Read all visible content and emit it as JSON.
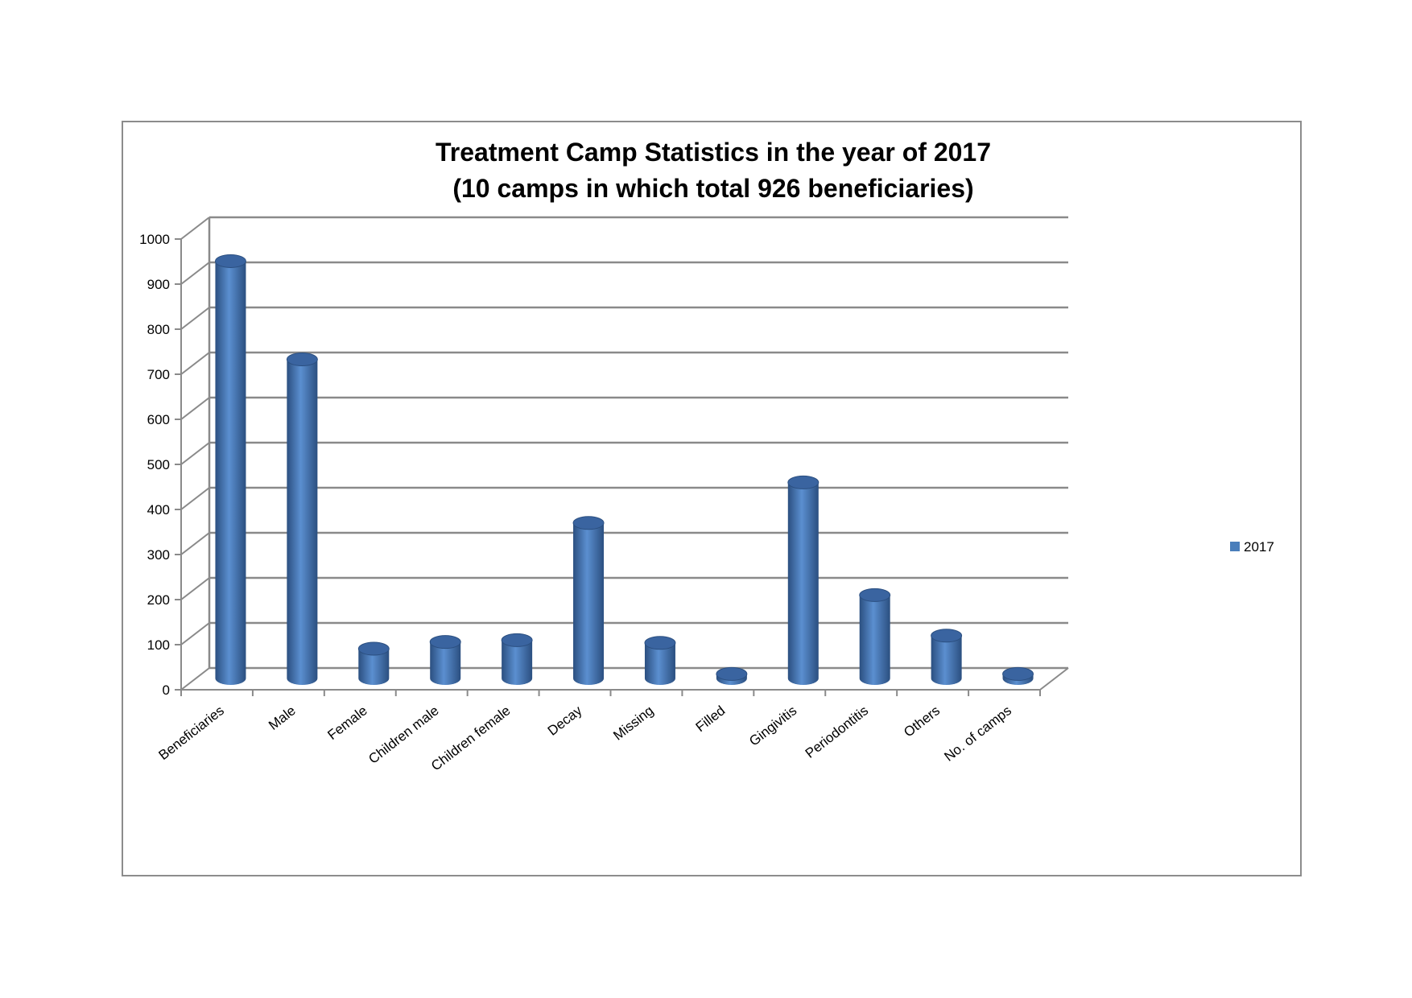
{
  "chart_data": {
    "type": "bar",
    "title": "Treatment Camp Statistics in the year of 2017",
    "subtitle": "(10 camps in which total 926 beneficiaries)",
    "categories": [
      "Beneficiaries",
      "Male",
      "Female",
      "Children male",
      "Children female",
      "Decay",
      "Missing",
      "Filled",
      "Gingivitis",
      "Periodontitis",
      "Others",
      "No. of camps"
    ],
    "series": [
      {
        "name": "2017",
        "values": [
          926,
          708,
          66,
          81,
          85,
          345,
          79,
          10,
          435,
          185,
          95,
          10
        ]
      }
    ],
    "y_ticks": [
      "0",
      "100",
      "200",
      "300",
      "400",
      "500",
      "600",
      "700",
      "800",
      "900",
      "1000"
    ],
    "ylim": [
      0,
      1000
    ],
    "xlabel": "",
    "ylabel": "",
    "grid": true,
    "legend": "right",
    "bar_style": "3d-cylinder",
    "colors": {
      "bar": "#4a7ebb",
      "bar_dark": "#2b4f80",
      "bar_top": "#3a64a0",
      "grid": "#8a8a8a",
      "frame": "#8c8c8c"
    }
  }
}
